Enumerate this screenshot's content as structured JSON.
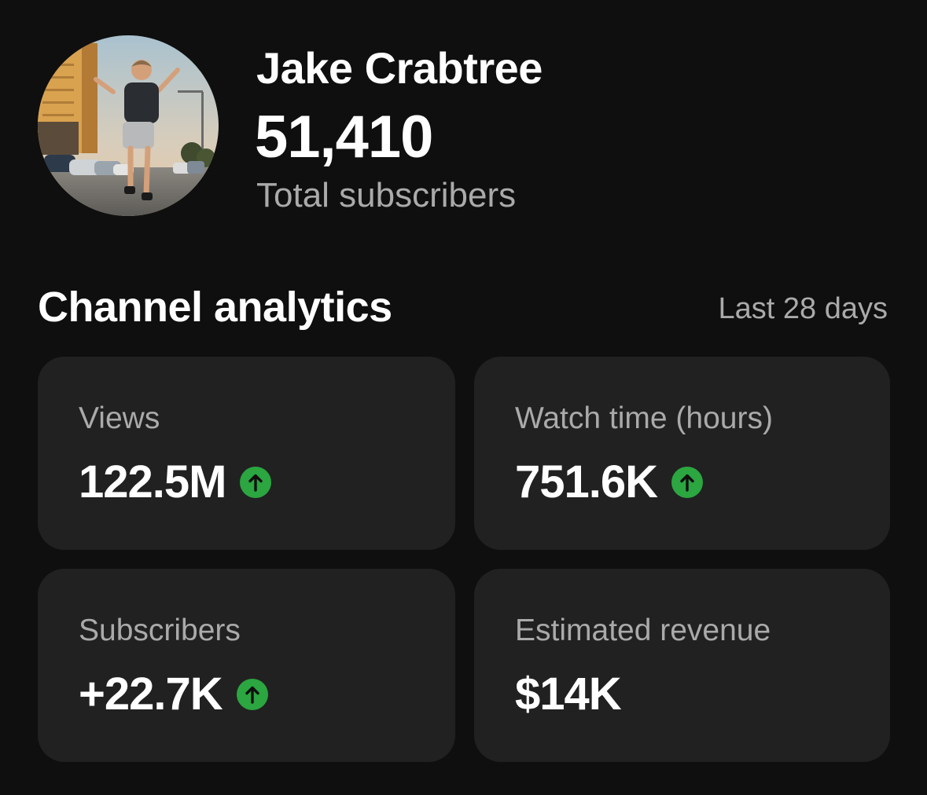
{
  "channel": {
    "name": "Jake Crabtree",
    "subscriber_count": "51,410",
    "subscriber_label": "Total subscribers",
    "avatar_icon": "channel-avatar-photo"
  },
  "analytics": {
    "title": "Channel analytics",
    "period": "Last 28 days",
    "trend_color": "#2ba640",
    "card_background": "#212121",
    "cards": [
      {
        "label": "Views",
        "value": "122.5M",
        "trend": "up"
      },
      {
        "label": "Watch time (hours)",
        "value": "751.6K",
        "trend": "up"
      },
      {
        "label": "Subscribers",
        "value": "+22.7K",
        "trend": "up"
      },
      {
        "label": "Estimated revenue",
        "value": "$14K",
        "trend": "none"
      }
    ]
  }
}
